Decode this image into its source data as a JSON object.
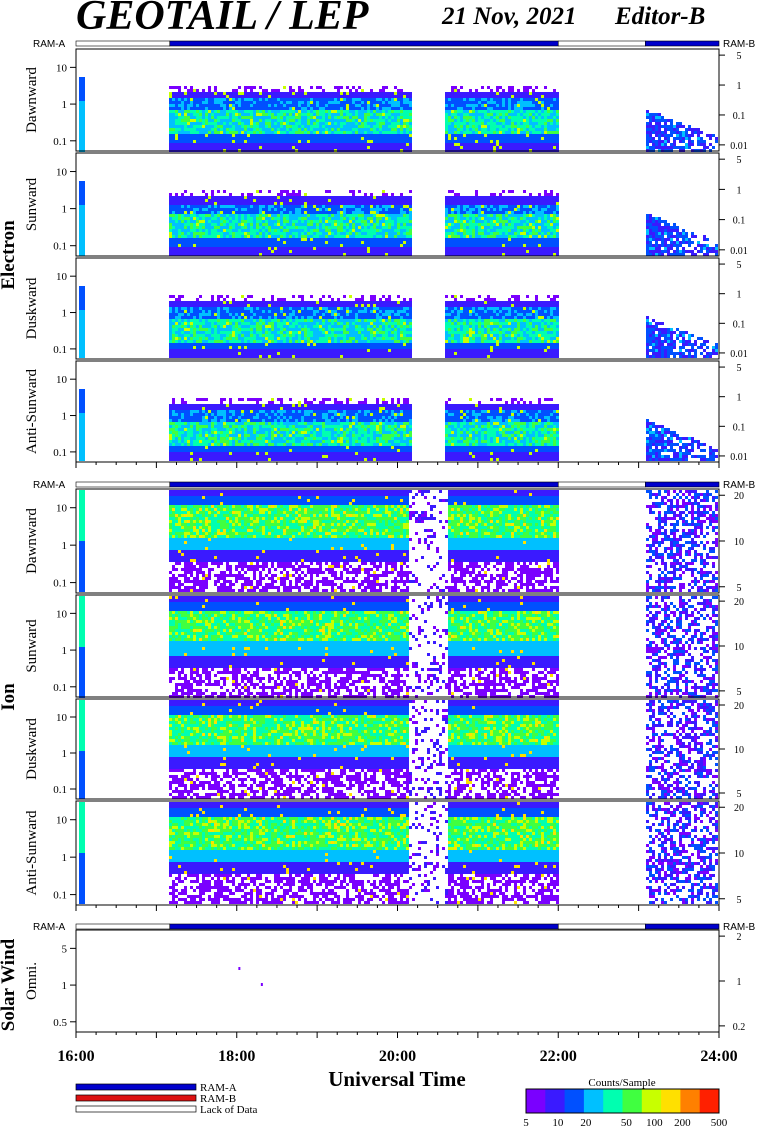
{
  "header": {
    "title": "GEOTAIL / LEP",
    "date": "21 Nov, 2021",
    "editor": "Editor-B"
  },
  "chart_data": {
    "type": "heatmap",
    "x_range": [
      "16:00",
      "24:00"
    ],
    "x_ticks": [
      "16:00",
      "18:00",
      "20:00",
      "22:00",
      "24:00"
    ],
    "xlabel": "Universal Time",
    "ram_labels": {
      "left": "RAM-A",
      "right": "RAM-B"
    },
    "mode_bar": [
      {
        "from": "16:00",
        "to": "17:10",
        "mode": "Lack of Data"
      },
      {
        "from": "17:10",
        "to": "22:00",
        "mode": "RAM-A"
      },
      {
        "from": "22:00",
        "to": "23:05",
        "mode": "Lack of Data"
      },
      {
        "from": "23:05",
        "to": "24:00",
        "mode": "RAM-A"
      }
    ],
    "data_intervals": [
      [
        "16:02",
        "16:06"
      ],
      [
        "17:10",
        "20:10"
      ],
      [
        "20:35",
        "22:00"
      ],
      [
        "23:05",
        "24:00"
      ]
    ],
    "groups": [
      {
        "name": "Electron",
        "left_ticks": [
          "10",
          "1",
          "0.1"
        ],
        "right_ticks": [
          "5",
          "1",
          "0.1",
          "0.01"
        ],
        "panels": [
          "Dawnward",
          "Sunward",
          "Duskward",
          "Anti-Sunward"
        ]
      },
      {
        "name": "Ion",
        "left_ticks": [
          "10",
          "1",
          "0.1"
        ],
        "right_ticks": [
          "20",
          "10",
          "5"
        ],
        "panels": [
          "Dawnward",
          "Sunward",
          "Duskward",
          "Anti-Sunward"
        ]
      },
      {
        "name": "Solar Wind",
        "left_ticks": [
          "5",
          "1",
          "0.5"
        ],
        "right_ticks": [
          "2",
          "1",
          "0.2"
        ],
        "panels": [
          "Omni."
        ]
      }
    ],
    "legend": {
      "items": [
        {
          "label": "RAM-A",
          "color": "#0000cc"
        },
        {
          "label": "RAM-B",
          "color": "#dd1111"
        },
        {
          "label": "Lack of Data",
          "color": "#ffffff"
        }
      ]
    },
    "colorbar": {
      "title": "Counts/Sample",
      "ticks": [
        "5",
        "10",
        "20",
        "50",
        "100",
        "200",
        "500"
      ],
      "colors": [
        "#7a00ff",
        "#3a1aff",
        "#0050ff",
        "#00c0ff",
        "#00ffb0",
        "#40ff40",
        "#c8ff00",
        "#ffe000",
        "#ff8000",
        "#ff2000"
      ]
    }
  }
}
